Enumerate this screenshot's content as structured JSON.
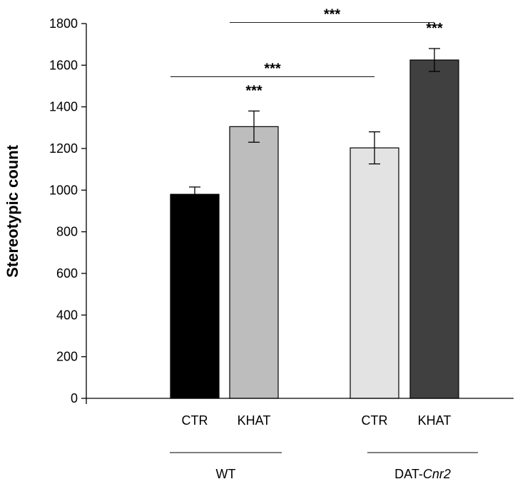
{
  "chart_data": {
    "type": "bar",
    "title": "",
    "xlabel": "",
    "ylabel": "Stereotypic count",
    "ylim": [
      0,
      1800
    ],
    "yticks": [
      0,
      200,
      400,
      600,
      800,
      1000,
      1200,
      1400,
      1600,
      1800
    ],
    "grid": false,
    "legend": "none",
    "groups": [
      {
        "label_prefix": "WT",
        "label_italic": ""
      },
      {
        "label_prefix": "DAT-",
        "label_italic": "Cnr2"
      }
    ],
    "bars": [
      {
        "group": 0,
        "category": "CTR",
        "value": 980,
        "error": 35,
        "color": "#000000",
        "sig": ""
      },
      {
        "group": 0,
        "category": "KHAT",
        "value": 1305,
        "error": 75,
        "color": "#bdbdbd",
        "sig": "***"
      },
      {
        "group": 1,
        "category": "CTR",
        "value": 1203,
        "error": 77,
        "color": "#e3e3e3",
        "sig": ""
      },
      {
        "group": 1,
        "category": "KHAT",
        "value": 1625,
        "error": 55,
        "color": "#404040",
        "sig": "***"
      }
    ],
    "comparisons": [
      {
        "from_bar": 0,
        "to_bar": 2,
        "y": 1545,
        "label": "***"
      },
      {
        "from_bar": 1,
        "to_bar": 3,
        "y": 1805,
        "label": "***"
      }
    ]
  }
}
